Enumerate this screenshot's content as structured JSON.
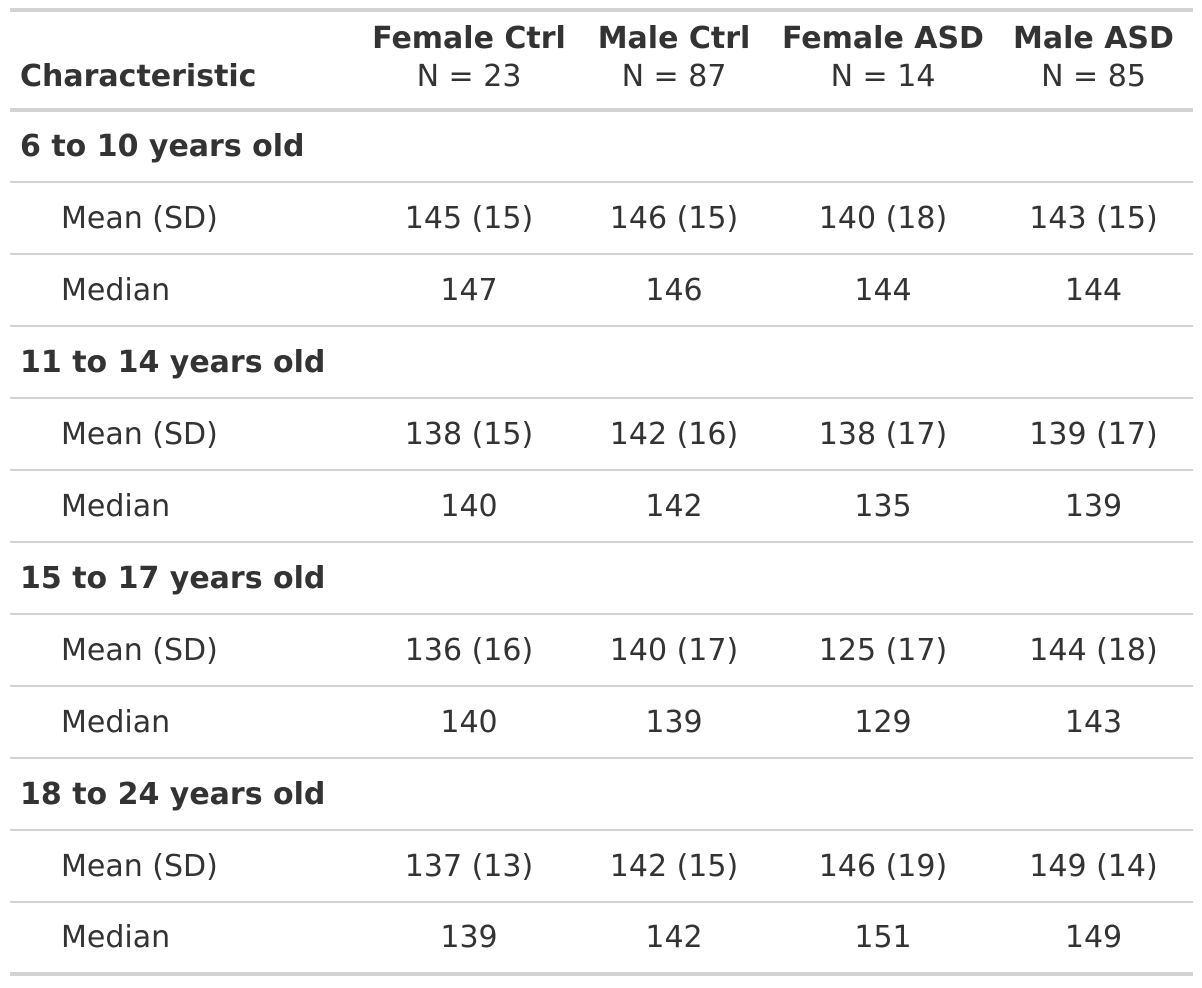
{
  "table": {
    "header": {
      "characteristic": "Characteristic",
      "groups": [
        {
          "name": "Female Ctrl",
          "n": "N = 23"
        },
        {
          "name": "Male Ctrl",
          "n": "N = 87"
        },
        {
          "name": "Female ASD",
          "n": "N = 14"
        },
        {
          "name": "Male ASD",
          "n": "N = 85"
        }
      ]
    },
    "sections": [
      {
        "label": "6 to 10 years old",
        "rows": [
          {
            "label": "Mean (SD)",
            "values": [
              "145 (15)",
              "146 (15)",
              "140 (18)",
              "143 (15)"
            ]
          },
          {
            "label": "Median",
            "values": [
              "147",
              "146",
              "144",
              "144"
            ]
          }
        ]
      },
      {
        "label": "11 to 14 years old",
        "rows": [
          {
            "label": "Mean (SD)",
            "values": [
              "138 (15)",
              "142 (16)",
              "138 (17)",
              "139 (17)"
            ]
          },
          {
            "label": "Median",
            "values": [
              "140",
              "142",
              "135",
              "139"
            ]
          }
        ]
      },
      {
        "label": "15 to 17 years old",
        "rows": [
          {
            "label": "Mean (SD)",
            "values": [
              "136 (16)",
              "140 (17)",
              "125 (17)",
              "144 (18)"
            ]
          },
          {
            "label": "Median",
            "values": [
              "140",
              "139",
              "129",
              "143"
            ]
          }
        ]
      },
      {
        "label": "18 to 24 years old",
        "rows": [
          {
            "label": "Mean (SD)",
            "values": [
              "137 (13)",
              "142 (15)",
              "146 (19)",
              "149 (14)"
            ]
          },
          {
            "label": "Median",
            "values": [
              "139",
              "142",
              "151",
              "149"
            ]
          }
        ]
      }
    ]
  },
  "colors": {
    "text": "#333333",
    "rule": "#d3d3d3",
    "background": "#ffffff"
  }
}
